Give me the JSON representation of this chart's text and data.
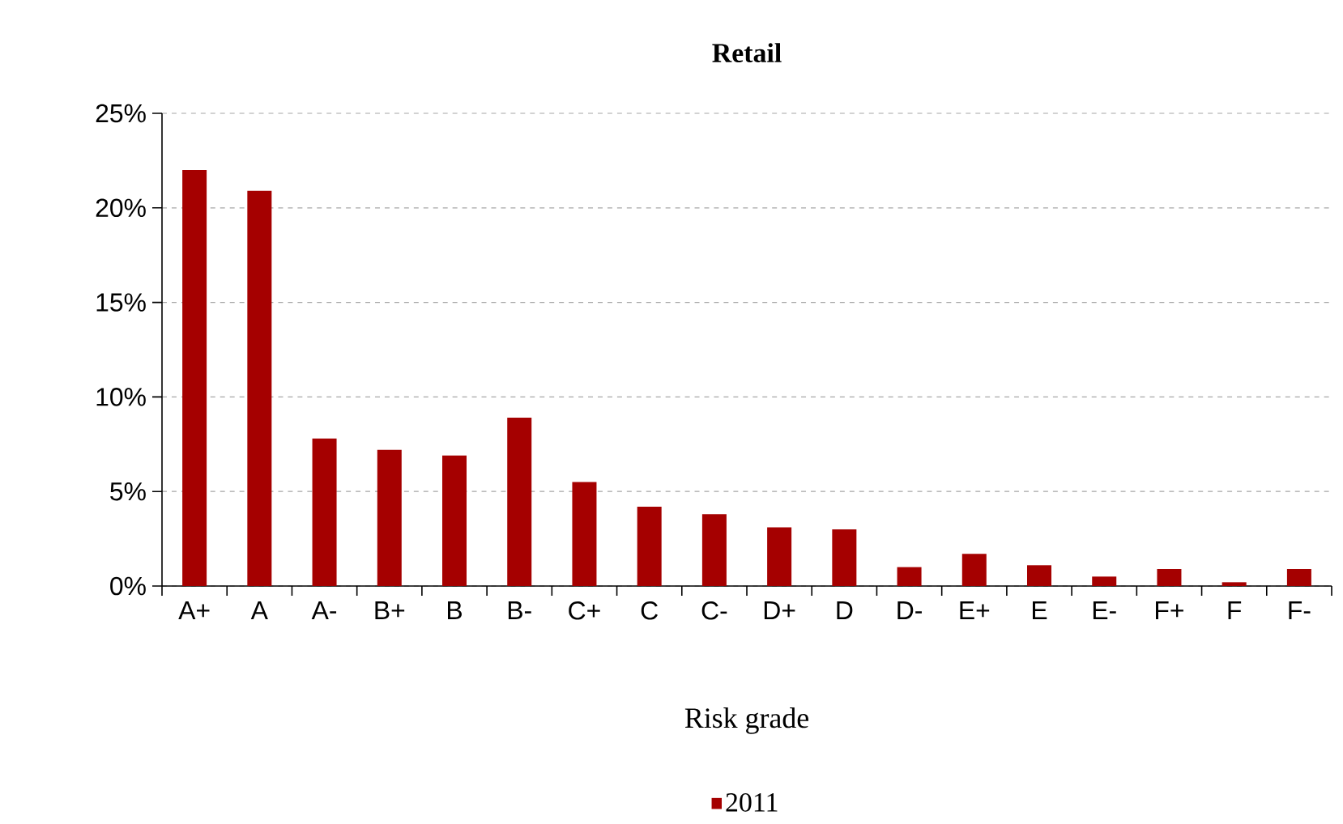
{
  "chart_data": {
    "type": "bar",
    "title": "Retail",
    "xlabel": "Risk grade",
    "categories": [
      "A+",
      "A",
      "A-",
      "B+",
      "B",
      "B-",
      "C+",
      "C",
      "C-",
      "D+",
      "D",
      "D-",
      "E+",
      "E",
      "E-",
      "F+",
      "F",
      "F-"
    ],
    "series": [
      {
        "name": "2011",
        "color": "#a50000",
        "values": [
          22.0,
          20.9,
          7.8,
          7.2,
          6.9,
          8.9,
          5.5,
          4.2,
          3.8,
          3.1,
          3.0,
          1.0,
          1.7,
          1.1,
          0.5,
          0.9,
          0.2,
          0.9
        ]
      }
    ],
    "ylim": [
      0,
      25
    ],
    "yticks": [
      {
        "value": 0,
        "label": "0%"
      },
      {
        "value": 5,
        "label": "5%"
      },
      {
        "value": 10,
        "label": "10%"
      },
      {
        "value": 15,
        "label": "15%"
      },
      {
        "value": 20,
        "label": "20%"
      },
      {
        "value": 25,
        "label": "25%"
      }
    ],
    "grid": "y",
    "legend": "bottom"
  }
}
